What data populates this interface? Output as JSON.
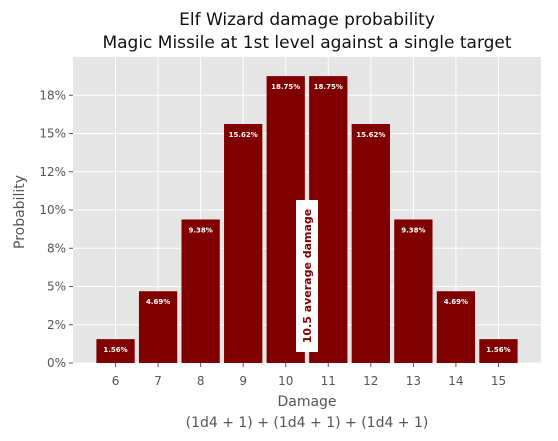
{
  "chart_data": {
    "type": "bar",
    "title": "Elf Wizard damage probability",
    "subtitle": "Magic Missile at 1st level against a single target",
    "xlabel": "Damage",
    "xlabel_line2": "(1d4 + 1) + (1d4 + 1) + (1d4 + 1)",
    "ylabel": "Probability",
    "categories": [
      "6",
      "7",
      "8",
      "9",
      "10",
      "11",
      "12",
      "13",
      "14",
      "15"
    ],
    "values": [
      1.56,
      4.69,
      9.38,
      15.62,
      18.75,
      18.75,
      15.62,
      9.38,
      4.69,
      1.56
    ],
    "data_labels": [
      "1.56%",
      "4.69%",
      "9.38%",
      "15.62%",
      "18.75%",
      "18.75%",
      "15.62%",
      "9.38%",
      "4.69%",
      "1.56%"
    ],
    "ylim": [
      0,
      20
    ],
    "yticks": [
      0,
      2.5,
      5,
      7.5,
      10,
      12.5,
      15,
      17.5
    ],
    "ytick_labels": [
      "0%",
      "2%",
      "5%",
      "8%",
      "10%",
      "12%",
      "15%",
      "18%"
    ],
    "annotation": "10.5 average damage",
    "annotation_x": 10.5,
    "grid": true,
    "colors": {
      "bar": "#800000",
      "plot_background": "#e5e5e5",
      "grid": "#ffffff",
      "annotation_text": "#800000",
      "annotation_box": "#ffffff"
    }
  }
}
